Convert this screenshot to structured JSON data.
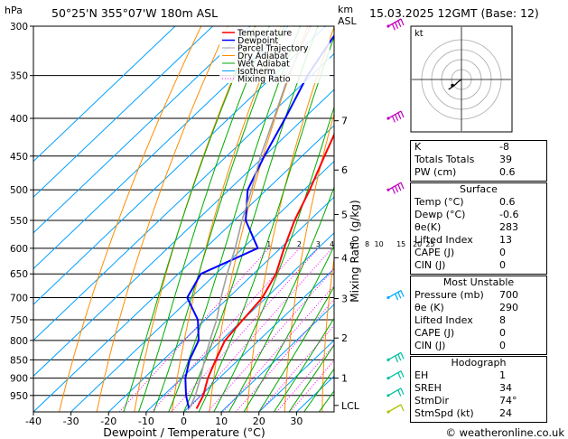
{
  "header": {
    "location": "50°25'N  355°07'W  180m  ASL",
    "datetime": "15.03.2025  12GMT  (Base: 12)",
    "hpa_label": "hPa",
    "km_label": "km",
    "asl_label": "ASL"
  },
  "footer": {
    "credit": "© weatheronline.co.uk"
  },
  "legend": [
    {
      "label": "Temperature",
      "color": "#ff0000",
      "style": "solid",
      "width": 1.5
    },
    {
      "label": "Dewpoint",
      "color": "#0000ff",
      "style": "solid",
      "width": 1.5
    },
    {
      "label": "Parcel Trajectory",
      "color": "#a0a0a0",
      "style": "solid",
      "width": 1
    },
    {
      "label": "Dry Adiabat",
      "color": "#ff8c00",
      "style": "solid",
      "width": 1
    },
    {
      "label": "Wet Adiabat",
      "color": "#00aa00",
      "style": "solid",
      "width": 1
    },
    {
      "label": "Isotherm",
      "color": "#00a0ff",
      "style": "solid",
      "width": 1
    },
    {
      "label": "Mixing Ratio",
      "color": "#ff00ff",
      "style": "dotted",
      "width": 1
    }
  ],
  "chart_data": {
    "type": "line",
    "title": "",
    "xlabel": "Dewpoint / Temperature (°C)",
    "ylabel": "hPa",
    "y2label": "Mixing Ratio (g/kg)",
    "xlim": [
      -40,
      40
    ],
    "ylim": [
      1000,
      300
    ],
    "x_ticks": [
      -40,
      -30,
      -20,
      -10,
      0,
      10,
      20,
      30
    ],
    "pressure_ticks": [
      300,
      350,
      400,
      450,
      500,
      550,
      600,
      650,
      700,
      750,
      800,
      850,
      900,
      950
    ],
    "km_ticks": [
      {
        "label": "7",
        "p": 403
      },
      {
        "label": "6",
        "p": 470
      },
      {
        "label": "5",
        "p": 540
      },
      {
        "label": "4",
        "p": 618
      },
      {
        "label": "3",
        "p": 702
      },
      {
        "label": "2",
        "p": 794
      },
      {
        "label": "1",
        "p": 900
      },
      {
        "label": "LCL",
        "p": 980
      }
    ],
    "mixing_ratio_labels": [
      "1",
      "2",
      "3",
      "4",
      "6",
      "8",
      "10",
      "15",
      "20",
      "25"
    ],
    "series": [
      {
        "name": "Temperature",
        "color": "#ff0000",
        "points": [
          [
            990,
            2.5
          ],
          [
            950,
            0.6
          ],
          [
            900,
            -3
          ],
          [
            850,
            -6
          ],
          [
            800,
            -9
          ],
          [
            750,
            -10
          ],
          [
            700,
            -11
          ],
          [
            650,
            -14
          ],
          [
            600,
            -19
          ],
          [
            550,
            -24
          ],
          [
            500,
            -28.5
          ],
          [
            450,
            -34
          ],
          [
            400,
            -40
          ],
          [
            350,
            -47
          ],
          [
            300,
            -54
          ]
        ]
      },
      {
        "name": "Dewpoint",
        "color": "#0000ff",
        "points": [
          [
            990,
            0.5
          ],
          [
            950,
            -4
          ],
          [
            900,
            -9
          ],
          [
            850,
            -13
          ],
          [
            800,
            -16
          ],
          [
            750,
            -22
          ],
          [
            700,
            -31
          ],
          [
            650,
            -34
          ],
          [
            600,
            -26
          ],
          [
            550,
            -37
          ],
          [
            500,
            -45
          ],
          [
            450,
            -50
          ],
          [
            400,
            -55
          ],
          [
            350,
            -61
          ],
          [
            300,
            -66
          ]
        ]
      },
      {
        "name": "Parcel Trajectory",
        "color": "#a0a0a0",
        "points": [
          [
            990,
            0.6
          ],
          [
            950,
            -1.5
          ],
          [
            900,
            -5
          ],
          [
            850,
            -9
          ],
          [
            800,
            -13
          ],
          [
            750,
            -17
          ],
          [
            700,
            -22
          ],
          [
            650,
            -27
          ],
          [
            600,
            -32
          ],
          [
            550,
            -38
          ],
          [
            500,
            -44
          ],
          [
            450,
            -51
          ],
          [
            400,
            -58
          ],
          [
            350,
            -66
          ],
          [
            300,
            -74
          ]
        ]
      }
    ]
  },
  "hodograph": {
    "label": "kt",
    "rings": [
      10,
      20,
      30,
      40
    ],
    "hodo_points": [
      [
        0,
        0
      ],
      [
        -3,
        -2
      ],
      [
        -6,
        -5
      ],
      [
        -10,
        -8
      ],
      [
        -13,
        -10
      ]
    ],
    "storm_motion": [
      -9,
      -6
    ]
  },
  "wind_barbs": [
    {
      "p": 300,
      "color": "#c000c0",
      "speed_kt": 60
    },
    {
      "p": 400,
      "color": "#c000c0",
      "speed_kt": 55
    },
    {
      "p": 500,
      "color": "#c000c0",
      "speed_kt": 50
    },
    {
      "p": 700,
      "color": "#00aaff",
      "speed_kt": 25
    },
    {
      "p": 850,
      "color": "#00c0a0",
      "speed_kt": 25
    },
    {
      "p": 900,
      "color": "#00c0a0",
      "speed_kt": 20
    },
    {
      "p": 950,
      "color": "#00c0a0",
      "speed_kt": 15
    },
    {
      "p": 1000,
      "color": "#b0c000",
      "speed_kt": 10
    }
  ],
  "indices": {
    "top": [
      {
        "label": "K",
        "value": "-8"
      },
      {
        "label": "Totals Totals",
        "value": "39"
      },
      {
        "label": "PW (cm)",
        "value": "0.6"
      }
    ],
    "surface": {
      "title": "Surface",
      "rows": [
        {
          "label": "Temp (°C)",
          "value": "0.6"
        },
        {
          "label": "Dewp (°C)",
          "value": "-0.6"
        },
        {
          "label": "θe(K)",
          "value": "283"
        },
        {
          "label": "Lifted Index",
          "value": "13"
        },
        {
          "label": "CAPE (J)",
          "value": "0"
        },
        {
          "label": "CIN (J)",
          "value": "0"
        }
      ]
    },
    "most_unstable": {
      "title": "Most Unstable",
      "rows": [
        {
          "label": "Pressure (mb)",
          "value": "700"
        },
        {
          "label": "θe (K)",
          "value": "290"
        },
        {
          "label": "Lifted Index",
          "value": "8"
        },
        {
          "label": "CAPE (J)",
          "value": "0"
        },
        {
          "label": "CIN (J)",
          "value": "0"
        }
      ]
    },
    "hodograph": {
      "title": "Hodograph",
      "rows": [
        {
          "label": "EH",
          "value": "1"
        },
        {
          "label": "SREH",
          "value": "34"
        },
        {
          "label": "StmDir",
          "value": "74°"
        },
        {
          "label": "StmSpd (kt)",
          "value": "24"
        }
      ]
    }
  }
}
